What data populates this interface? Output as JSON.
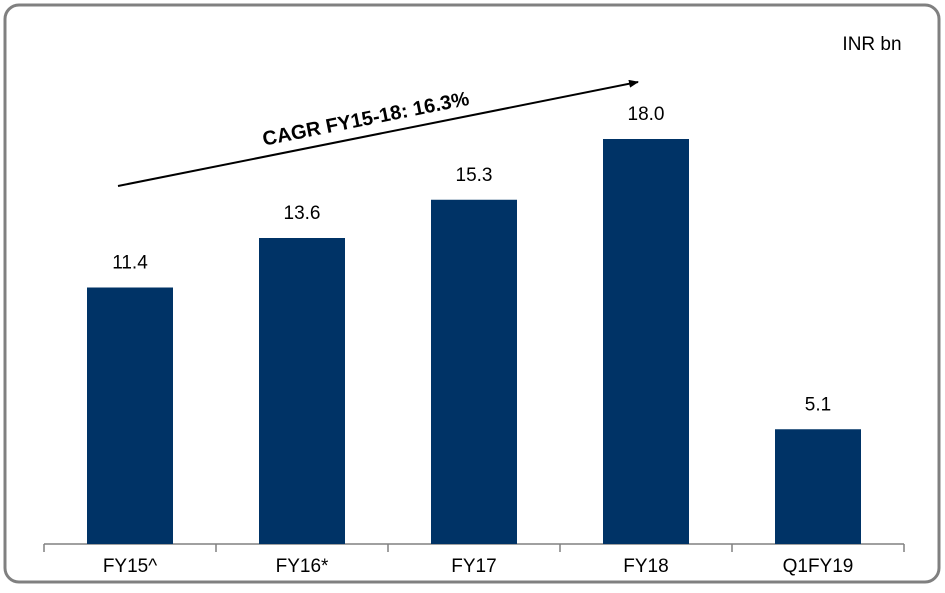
{
  "chart_data": {
    "type": "bar",
    "unit_label": "INR bn",
    "annotation": "CAGR FY15-18: 16.3%",
    "categories": [
      "FY15^",
      "FY16*",
      "FY17",
      "FY18",
      "Q1FY19"
    ],
    "values": [
      11.4,
      13.6,
      15.3,
      18.0,
      5.1
    ],
    "value_labels": [
      "11.4",
      "13.6",
      "15.3",
      "18.0",
      "5.1"
    ],
    "color": "#003366"
  }
}
